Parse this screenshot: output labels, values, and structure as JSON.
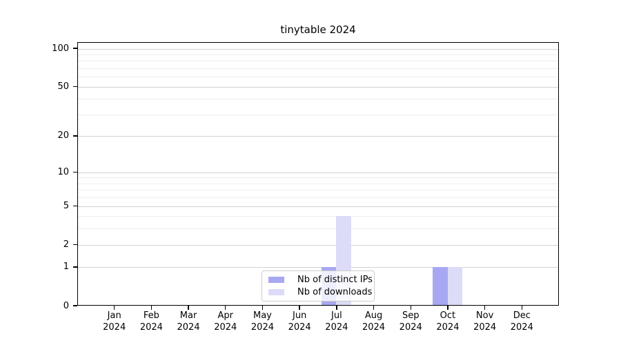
{
  "figure": {
    "background": "#ffffff"
  },
  "chart_data": {
    "type": "bar",
    "title": "tinytable 2024",
    "year_label": "2024",
    "categories": [
      "Jan",
      "Feb",
      "Mar",
      "Apr",
      "May",
      "Jun",
      "Jul",
      "Aug",
      "Sep",
      "Oct",
      "Nov",
      "Dec"
    ],
    "series": [
      {
        "name": "Nb of distinct IPs",
        "color": "#a8a8f2",
        "values": [
          0,
          0,
          0,
          0,
          0,
          0,
          1,
          0,
          0,
          1,
          0,
          0
        ]
      },
      {
        "name": "Nb of downloads",
        "color": "#dcdcf8",
        "values": [
          0,
          0,
          0,
          0,
          0,
          0,
          4,
          0,
          0,
          1,
          0,
          0
        ]
      }
    ],
    "y_axis": {
      "scale": "log1p",
      "tick_values": [
        0,
        1,
        2,
        5,
        10,
        20,
        50,
        100
      ],
      "ylim": [
        0,
        112
      ]
    },
    "x_axis": {
      "tick_label_format": "month over year"
    },
    "grid": {
      "on": true,
      "orientation": "horizontal",
      "major_values": [
        1,
        2,
        5,
        10,
        20,
        50,
        100
      ],
      "minor_values": [
        1,
        2,
        3,
        4,
        5,
        6,
        7,
        8,
        9,
        10,
        20,
        30,
        40,
        50,
        60,
        70,
        80,
        90,
        100
      ],
      "major_color": "#d2d2d2",
      "minor_color": "#ededed"
    },
    "legend": {
      "position": "inside-bottom-center",
      "border_color": "#cccccc"
    }
  }
}
